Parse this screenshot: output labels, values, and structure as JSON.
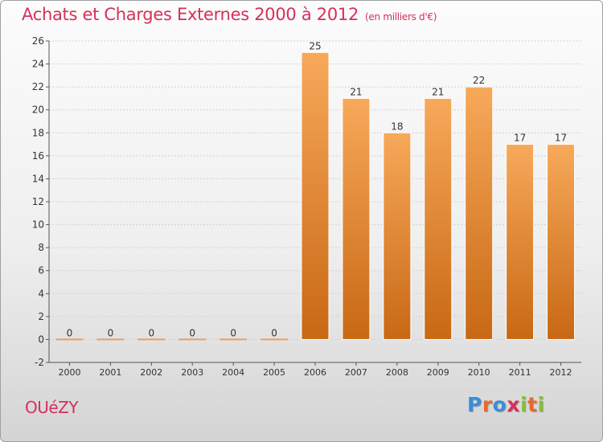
{
  "title": "Achats et Charges Externes 2000 à 2012",
  "subtitle": "(en milliers d'€)",
  "commune": "OUéZY",
  "logo": {
    "letters": [
      "P",
      "r",
      "o",
      "x",
      "i",
      "t",
      "i"
    ],
    "colors": [
      "#3b8ed6",
      "#e46a2e",
      "#3b8ed6",
      "#d6305a",
      "#8bbd3a",
      "#e46a2e",
      "#8bbd3a"
    ]
  },
  "colors": {
    "bar_top": "#f7a95a",
    "bar_bottom": "#c86814",
    "accent": "#d6305a"
  },
  "chart_data": {
    "type": "bar",
    "title": "Achats et Charges Externes 2000 à 2012",
    "subtitle": "(en milliers d'€)",
    "categories": [
      "2000",
      "2001",
      "2002",
      "2003",
      "2004",
      "2005",
      "2006",
      "2007",
      "2008",
      "2009",
      "2010",
      "2011",
      "2012"
    ],
    "values": [
      0,
      0,
      0,
      0,
      0,
      0,
      25,
      21,
      18,
      21,
      22,
      17,
      17
    ],
    "data_labels": [
      "0",
      "0",
      "0",
      "0",
      "0",
      "0",
      "25",
      "21",
      "18",
      "21",
      "22",
      "17",
      "17"
    ],
    "yticks": [
      "-2",
      "0",
      "2",
      "4",
      "6",
      "8",
      "10",
      "12",
      "14",
      "16",
      "18",
      "20",
      "22",
      "24",
      "26"
    ],
    "ylim": [
      -2,
      26
    ],
    "grid": true,
    "xlabel": "",
    "ylabel": ""
  }
}
